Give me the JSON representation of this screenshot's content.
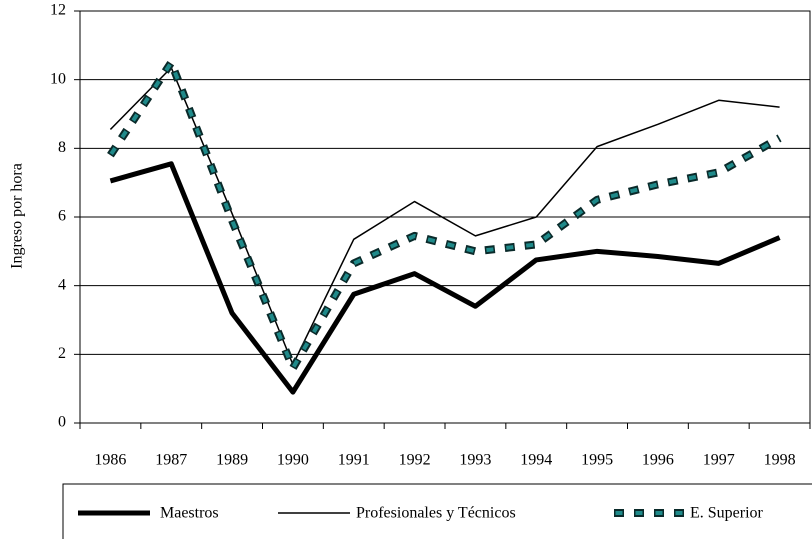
{
  "chart_data": {
    "type": "line",
    "y_label": "Ingreso por hora",
    "categories": [
      "1986",
      "1987",
      "1989",
      "1990",
      "1991",
      "1992",
      "1993",
      "1994",
      "1995",
      "1996",
      "1997",
      "1998"
    ],
    "series": [
      {
        "name": "Maestros",
        "color": "#000000",
        "style": "thick",
        "values": [
          7.05,
          7.55,
          3.2,
          0.9,
          3.75,
          4.35,
          3.4,
          4.75,
          5.0,
          4.85,
          4.65,
          5.4
        ]
      },
      {
        "name": "Profesionales y Técnicos",
        "color": "#000000",
        "style": "thin",
        "values": [
          8.55,
          10.35,
          6.1,
          1.7,
          5.35,
          6.45,
          5.45,
          6.0,
          8.05,
          8.7,
          9.4,
          9.2
        ]
      },
      {
        "name": "E. Superior",
        "color": "#1f8a8a",
        "style": "dashed",
        "values": [
          7.8,
          10.5,
          5.9,
          1.6,
          4.65,
          5.45,
          5.0,
          5.2,
          6.5,
          6.95,
          7.3,
          8.3
        ]
      }
    ],
    "ylim": [
      0,
      12
    ],
    "yticks": [
      0,
      2,
      4,
      6,
      8,
      10,
      12
    ],
    "grid": true,
    "legend": "bottom"
  }
}
